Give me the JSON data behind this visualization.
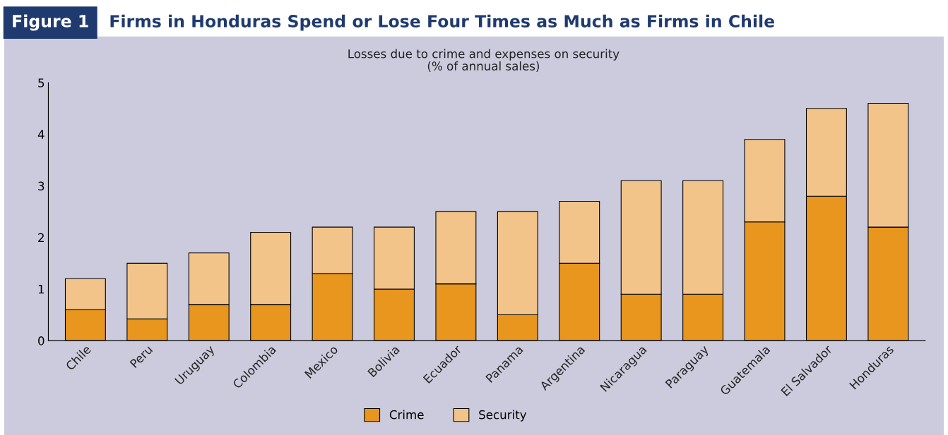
{
  "chart_data": {
    "type": "bar",
    "stacked": true,
    "annotations": [
      "Figure 1"
    ],
    "title": "Firms in Honduras Spend or Lose Four Times as Much as Firms in Chile",
    "subtitle": "Losses due to crime and expenses on security\n(% of annual sales)",
    "categories": [
      "Chile",
      "Peru",
      "Uruguay",
      "Colombia",
      "Mexico",
      "Bolivia",
      "Ecuador",
      "Panama",
      "Argentina",
      "Nicaragua",
      "Paraguay",
      "Guatemala",
      "El Salvador",
      "Honduras"
    ],
    "series": [
      {
        "name": "Crime",
        "color": "#e8961e",
        "values": [
          0.6,
          0.42,
          0.7,
          0.7,
          1.3,
          1.0,
          1.1,
          0.5,
          1.5,
          0.9,
          0.9,
          2.3,
          2.8,
          2.2
        ]
      },
      {
        "name": "Security",
        "color": "#f3c489",
        "values": [
          0.6,
          1.08,
          1.0,
          1.4,
          0.9,
          1.2,
          1.4,
          2.0,
          1.2,
          2.2,
          2.2,
          1.6,
          1.7,
          2.4
        ]
      }
    ],
    "ylim": [
      0,
      5
    ],
    "yticks": [
      0,
      1,
      2,
      3,
      4,
      5
    ],
    "grid": false,
    "legend": "bottom"
  }
}
